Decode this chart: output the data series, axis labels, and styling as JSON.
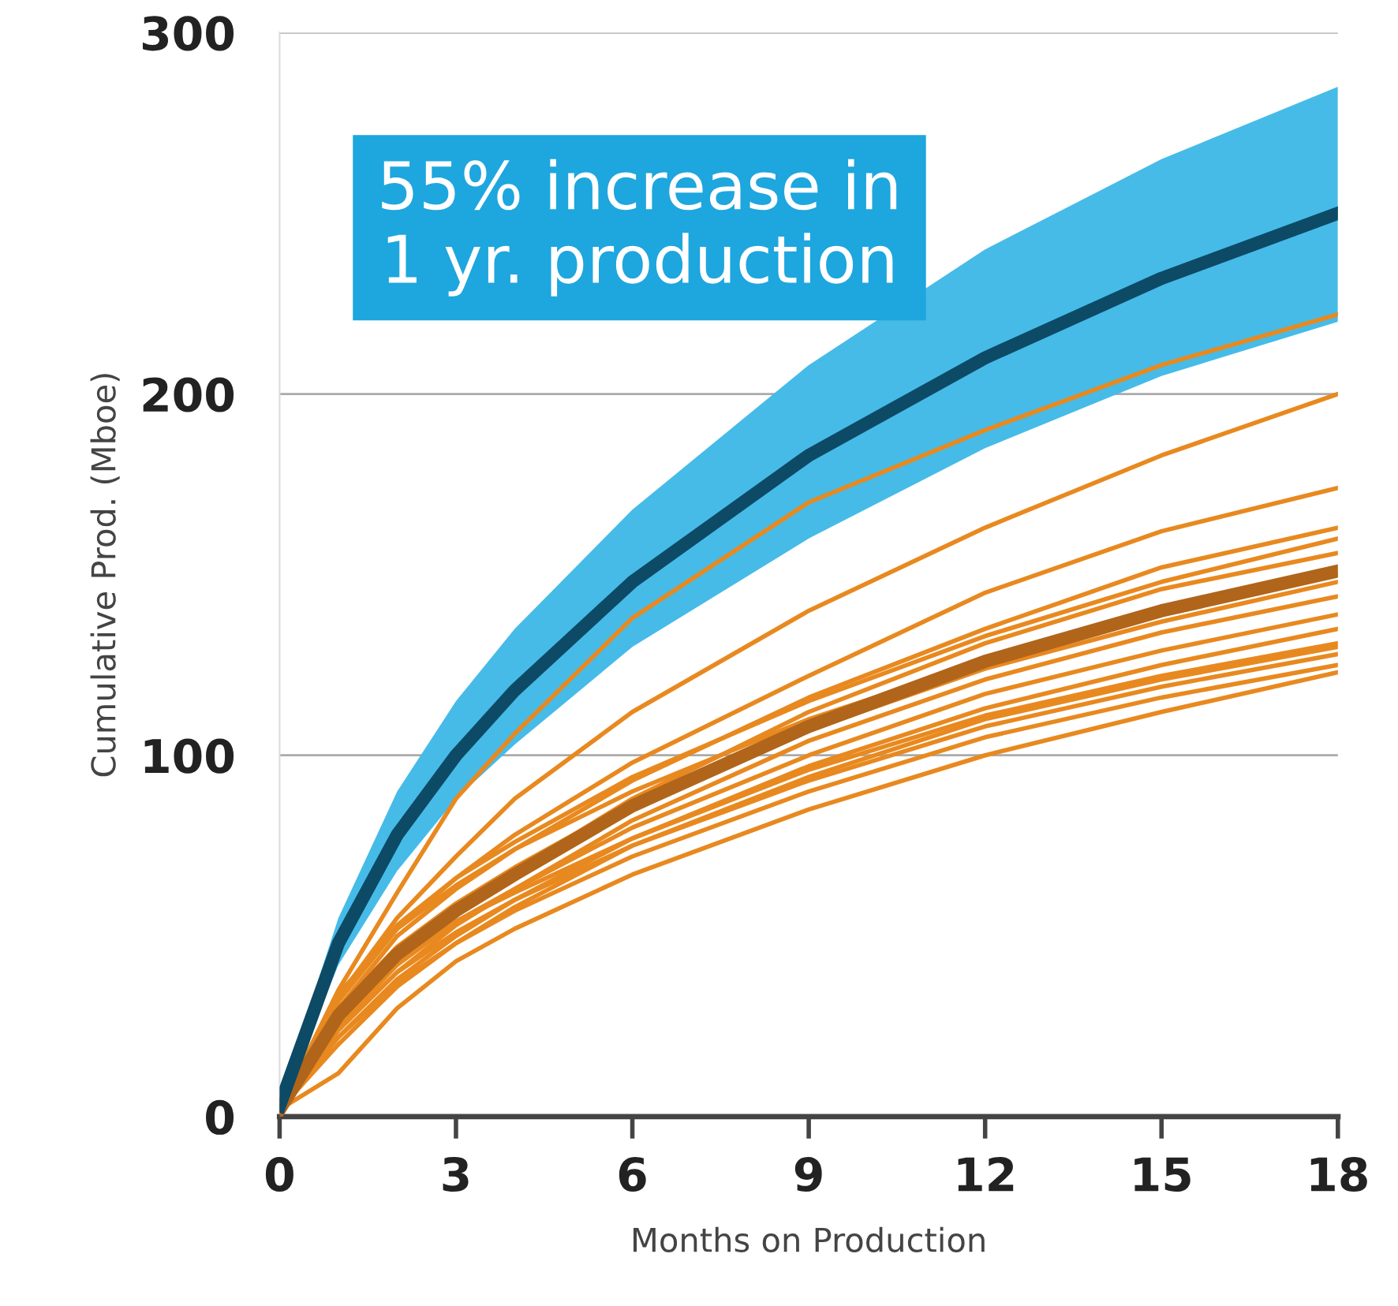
{
  "chart_data": {
    "type": "line",
    "xlabel": "Months on Production",
    "ylabel": "Cumulative Prod. (Mboe)",
    "x": [
      0,
      1,
      2,
      3,
      4,
      6,
      9,
      12,
      15,
      18
    ],
    "xlim": [
      0,
      18
    ],
    "xticks": [
      0,
      3,
      6,
      9,
      12,
      15,
      18
    ],
    "ylim": [
      0,
      300
    ],
    "yticks": [
      0,
      100,
      200,
      300
    ],
    "grid": "y",
    "legend": false,
    "annotations": [
      "55% increase in\n1 yr. production"
    ],
    "series": [
      {
        "color": "#e8891f",
        "values": [
          2,
          35,
          62,
          88,
          106,
          138,
          170,
          190,
          208,
          222
        ]
      },
      {
        "color": "#e8891f",
        "values": [
          2,
          33,
          55,
          72,
          88,
          112,
          140,
          163,
          183,
          200
        ]
      },
      {
        "color": "#e8891f",
        "values": [
          2,
          32,
          52,
          66,
          78,
          98,
          122,
          145,
          162,
          174
        ]
      },
      {
        "color": "#e8891f",
        "values": [
          2,
          30,
          50,
          63,
          74,
          93,
          116,
          135,
          152,
          163
        ]
      },
      {
        "color": "#e8891f",
        "values": [
          2,
          32,
          53,
          66,
          76,
          94,
          115,
          133,
          148,
          160
        ]
      },
      {
        "color": "#e8891f",
        "values": [
          2,
          26,
          44,
          57,
          68,
          88,
          112,
          131,
          146,
          156
        ]
      },
      {
        "color": "#e8891f",
        "values": [
          2,
          34,
          52,
          64,
          74,
          90,
          110,
          126,
          139,
          150
        ]
      },
      {
        "color": "#e8891f",
        "values": [
          2,
          30,
          47,
          59,
          69,
          87,
          107,
          124,
          137,
          148
        ]
      },
      {
        "color": "#e8891f",
        "values": [
          2,
          24,
          40,
          53,
          63,
          82,
          104,
          121,
          134,
          144
        ]
      },
      {
        "color": "#e8891f",
        "values": [
          2,
          25,
          42,
          54,
          63,
          80,
          100,
          117,
          129,
          139
        ]
      },
      {
        "color": "#e8891f",
        "values": [
          2,
          22,
          38,
          50,
          60,
          77,
          97,
          113,
          125,
          135
        ]
      },
      {
        "color": "#e8891f",
        "values": [
          2,
          27,
          43,
          54,
          62,
          77,
          96,
          111,
          122,
          131
        ]
      },
      {
        "color": "#e8891f",
        "values": [
          2,
          20,
          36,
          48,
          58,
          75,
          94,
          110,
          121,
          130
        ]
      },
      {
        "color": "#e8891f",
        "values": [
          2,
          24,
          40,
          51,
          60,
          75,
          93,
          108,
          119,
          128
        ]
      },
      {
        "color": "#e8891f",
        "values": [
          2,
          22,
          37,
          48,
          57,
          72,
          90,
          105,
          116,
          125
        ]
      },
      {
        "color": "#e8891f",
        "values": [
          2,
          12,
          30,
          43,
          52,
          67,
          85,
          100,
          112,
          123
        ]
      },
      {
        "color": "#b0651a",
        "values": [
          2,
          28,
          45,
          57,
          67,
          86,
          108,
          126,
          140,
          151
        ]
      },
      {
        "color": "#0d4a66",
        "values": [
          3,
          48,
          78,
          100,
          118,
          148,
          183,
          210,
          232,
          250
        ],
        "lower": [
          2,
          42,
          68,
          88,
          103,
          130,
          160,
          185,
          205,
          220
        ],
        "upper": [
          5,
          55,
          90,
          115,
          135,
          168,
          208,
          240,
          265,
          285
        ]
      }
    ]
  }
}
